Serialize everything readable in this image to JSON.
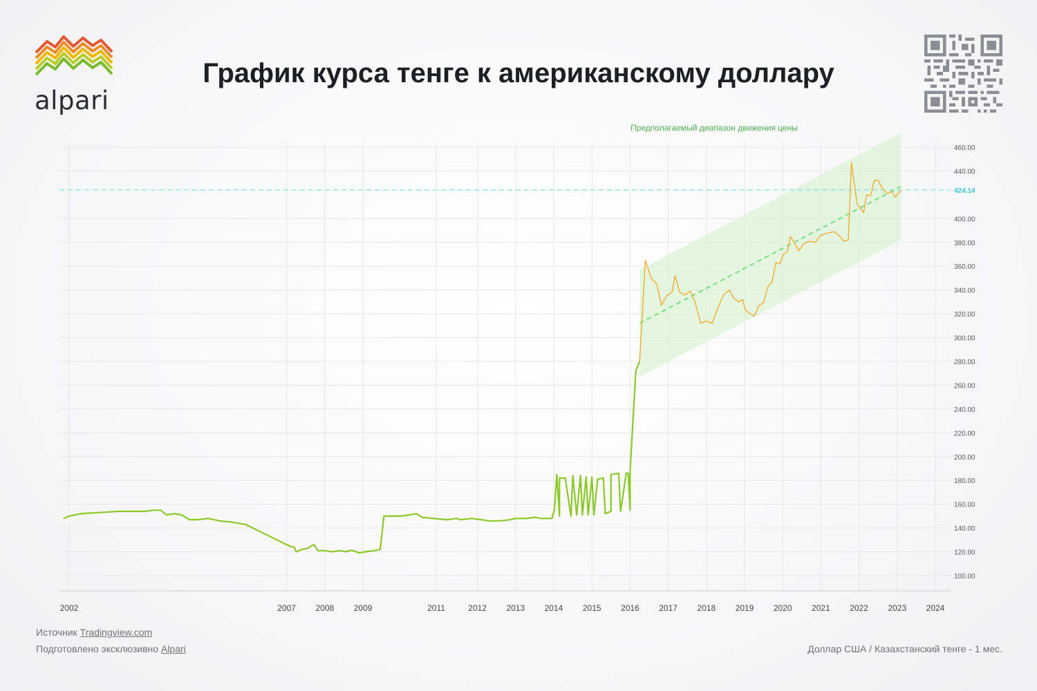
{
  "title": "График курса тенге к американскому доллару",
  "brand": {
    "name": "alpari"
  },
  "footer": {
    "source_label": "Источник",
    "source_link": "Tradingview.com",
    "prepared_label": "Подготовлено эксклюзивно",
    "prepared_link": "Alpari",
    "instrument": "Доллар США /  Казахстанский тенге - 1 мес."
  },
  "colors": {
    "history_line": "#8ac926",
    "forecast_line": "#f5a623",
    "channel_fill": "#d7f2cf",
    "trend_line": "#6fdc7a",
    "price_line": "#7fe0ea",
    "price_label": "#3ec8d8",
    "annotation": "#4caf50",
    "grid": "#e6e6e8"
  },
  "chart_data": {
    "type": "line",
    "x_ticks": [
      {
        "label": "2002",
        "t": 2001.3
      },
      {
        "label": "2007",
        "t": 2007.0
      },
      {
        "label": "2008",
        "t": 2008.0
      },
      {
        "label": "2009",
        "t": 2009.0
      },
      {
        "label": "2011",
        "t": 2010.92
      },
      {
        "label": "2012",
        "t": 2012.0
      },
      {
        "label": "2013",
        "t": 2013.0
      },
      {
        "label": "2014",
        "t": 2014.0
      },
      {
        "label": "2015",
        "t": 2015.0
      },
      {
        "label": "2016",
        "t": 2016.0
      },
      {
        "label": "2017",
        "t": 2017.0
      },
      {
        "label": "2018",
        "t": 2018.0
      },
      {
        "label": "2019",
        "t": 2019.0
      },
      {
        "label": "2020",
        "t": 2020.0
      },
      {
        "label": "2021",
        "t": 2021.0
      },
      {
        "label": "2022",
        "t": 2022.0
      },
      {
        "label": "2023",
        "t": 2023.0
      },
      {
        "label": "2024",
        "t": 2024.0
      }
    ],
    "y_ticks": [
      100,
      120,
      140,
      160,
      180,
      200,
      220,
      240,
      260,
      280,
      300,
      320,
      340,
      360,
      380,
      400,
      440,
      460
    ],
    "ylim": [
      90,
      465
    ],
    "grid": true,
    "current_price": {
      "value": 424.14,
      "label": "424.14"
    },
    "series": [
      {
        "style": "history",
        "points": [
          [
            2001.15,
            148
          ],
          [
            2001.3,
            150
          ],
          [
            2001.6,
            152
          ],
          [
            2002.1,
            153
          ],
          [
            2002.6,
            154
          ],
          [
            2003.0,
            154
          ],
          [
            2003.3,
            154
          ],
          [
            2003.5,
            155
          ],
          [
            2003.7,
            155
          ],
          [
            2003.85,
            151
          ],
          [
            2004.05,
            152
          ],
          [
            2004.25,
            151
          ],
          [
            2004.45,
            147
          ],
          [
            2004.65,
            147
          ],
          [
            2004.95,
            148
          ],
          [
            2005.25,
            146
          ],
          [
            2005.55,
            145
          ],
          [
            2005.72,
            144
          ],
          [
            2005.92,
            143
          ],
          [
            2007.0,
            126
          ],
          [
            2007.15,
            124
          ],
          [
            2007.2,
            124
          ],
          [
            2007.25,
            120
          ],
          [
            2007.4,
            122
          ],
          [
            2007.55,
            123
          ],
          [
            2007.65,
            125
          ],
          [
            2007.72,
            126
          ],
          [
            2007.82,
            121
          ],
          [
            2008.0,
            121
          ],
          [
            2008.2,
            120
          ],
          [
            2008.4,
            121
          ],
          [
            2008.55,
            120
          ],
          [
            2008.65,
            121
          ],
          [
            2008.75,
            121
          ],
          [
            2008.9,
            119
          ],
          [
            2009.05,
            120
          ],
          [
            2009.3,
            121
          ],
          [
            2009.45,
            122
          ],
          [
            2009.55,
            150
          ],
          [
            2009.8,
            150
          ],
          [
            2010.0,
            150
          ],
          [
            2010.2,
            151
          ],
          [
            2010.4,
            152
          ],
          [
            2010.55,
            149
          ],
          [
            2010.85,
            148
          ],
          [
            2011.2,
            147
          ],
          [
            2011.45,
            148
          ],
          [
            2011.55,
            147
          ],
          [
            2011.85,
            148
          ],
          [
            2012.1,
            147
          ],
          [
            2012.3,
            146
          ],
          [
            2012.6,
            146
          ],
          [
            2012.85,
            147
          ],
          [
            2013.0,
            148
          ],
          [
            2013.3,
            148
          ],
          [
            2013.5,
            149
          ],
          [
            2013.65,
            148
          ],
          [
            2013.95,
            148
          ],
          [
            2014.15,
            150
          ],
          [
            2014.45,
            150
          ],
          [
            2014.6,
            151
          ],
          [
            2014.75,
            151
          ],
          [
            2014.9,
            151
          ],
          [
            2015.05,
            151
          ],
          [
            2015.35,
            152
          ],
          [
            2015.5,
            154
          ],
          [
            2015.75,
            154
          ],
          [
            2016.0,
            155
          ],
          [
            2016.0,
            156
          ],
          [
            2014.02,
            156
          ],
          [
            2014.08,
            185
          ],
          [
            2014.15,
            182
          ],
          [
            2014.3,
            182
          ],
          [
            2014.5,
            184
          ],
          [
            2014.7,
            184
          ],
          [
            2014.85,
            183
          ],
          [
            2015.0,
            183
          ],
          [
            2015.15,
            181
          ],
          [
            2015.3,
            182
          ],
          [
            2015.5,
            185
          ],
          [
            2015.7,
            186
          ],
          [
            2015.9,
            186
          ],
          [
            2015.95,
            186
          ],
          [
            2016.0,
            188
          ],
          [
            2016.15,
            272
          ],
          [
            2016.25,
            280
          ]
        ]
      },
      {
        "style": "forecast",
        "points": [
          [
            2016.25,
            280
          ],
          [
            2016.4,
            365
          ],
          [
            2016.55,
            350
          ],
          [
            2016.7,
            345
          ],
          [
            2016.82,
            327
          ],
          [
            2016.95,
            335
          ],
          [
            2017.1,
            338
          ],
          [
            2017.18,
            352
          ],
          [
            2017.3,
            338
          ],
          [
            2017.45,
            336
          ],
          [
            2017.58,
            339
          ],
          [
            2017.7,
            330
          ],
          [
            2017.85,
            312
          ],
          [
            2018.0,
            314
          ],
          [
            2018.15,
            312
          ],
          [
            2018.3,
            325
          ],
          [
            2018.45,
            336
          ],
          [
            2018.6,
            340
          ],
          [
            2018.72,
            333
          ],
          [
            2018.85,
            330
          ],
          [
            2018.95,
            332
          ],
          [
            2019.02,
            323
          ],
          [
            2019.15,
            320
          ],
          [
            2019.25,
            318
          ],
          [
            2019.38,
            327
          ],
          [
            2019.5,
            329
          ],
          [
            2019.6,
            342
          ],
          [
            2019.72,
            347
          ],
          [
            2019.82,
            363
          ],
          [
            2019.92,
            362
          ],
          [
            2020.02,
            370
          ],
          [
            2020.12,
            372
          ],
          [
            2020.2,
            385
          ],
          [
            2020.32,
            379
          ],
          [
            2020.42,
            373
          ],
          [
            2020.55,
            379
          ],
          [
            2020.7,
            381
          ],
          [
            2020.85,
            380
          ],
          [
            2021.0,
            386
          ],
          [
            2021.2,
            388
          ],
          [
            2021.35,
            389
          ],
          [
            2021.5,
            385
          ],
          [
            2021.6,
            381
          ],
          [
            2021.72,
            382
          ],
          [
            2021.8,
            447
          ],
          [
            2021.95,
            412
          ],
          [
            2022.05,
            408
          ],
          [
            2022.12,
            405
          ],
          [
            2022.2,
            420
          ],
          [
            2022.3,
            419
          ],
          [
            2022.4,
            432
          ],
          [
            2022.5,
            432
          ],
          [
            2022.62,
            425
          ],
          [
            2022.75,
            421
          ],
          [
            2022.85,
            423
          ],
          [
            2022.95,
            418
          ],
          [
            2023.1,
            424
          ]
        ]
      }
    ],
    "channel": {
      "x": [
        2016.25,
        2023.1
      ],
      "lower": [
        267,
        382
      ],
      "upper": [
        357,
        472
      ]
    },
    "trend": {
      "x": [
        2016.25,
        2023.1
      ],
      "y": [
        312,
        427
      ]
    },
    "annotation": "Предполагаемый диапазон движения цены"
  }
}
